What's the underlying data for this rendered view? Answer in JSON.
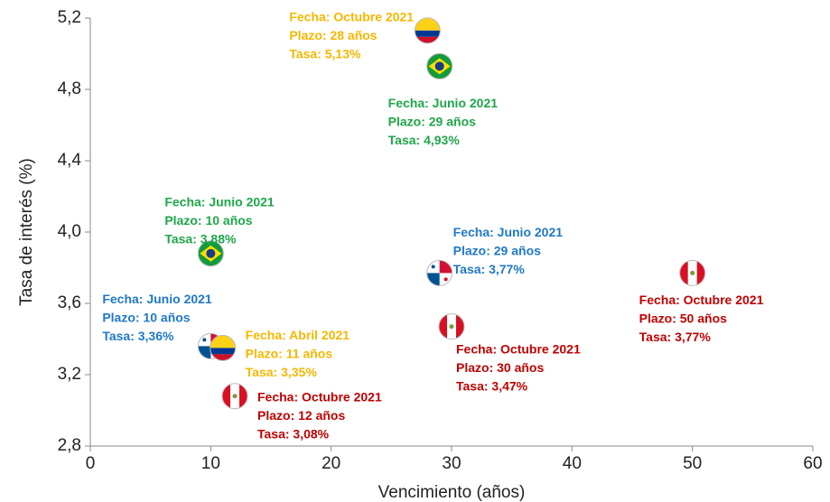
{
  "chart_data": {
    "type": "scatter",
    "x_label": "Vencimiento (años)",
    "y_label": "Tasa de interés (%)",
    "xlim": [
      0,
      60
    ],
    "xticks": [
      0,
      10,
      20,
      30,
      40,
      50,
      60
    ],
    "ylim": [
      2.8,
      5.2
    ],
    "yticks": [
      {
        "value": 2.8,
        "label": "2,8"
      },
      {
        "value": 3.2,
        "label": "3,2"
      },
      {
        "value": 3.6,
        "label": "3,6"
      },
      {
        "value": 4.0,
        "label": "4,0"
      },
      {
        "value": 4.4,
        "label": "4,4"
      },
      {
        "value": 4.8,
        "label": "4,8"
      },
      {
        "value": 5.2,
        "label": "5,2"
      }
    ],
    "points": [
      {
        "x": 28,
        "y": 5.13,
        "color": "#f5b700",
        "marker": "co",
        "labels": [
          "Fecha: Octubre 2021",
          "Plazo: 28 años",
          "Tasa: 5,13%"
        ]
      },
      {
        "x": 29,
        "y": 4.93,
        "color": "#1fa64a",
        "marker": "br",
        "labels": [
          "Fecha: Junio 2021",
          "Plazo: 29 años",
          "Tasa: 4,93%"
        ]
      },
      {
        "x": 10,
        "y": 3.88,
        "color": "#1fa64a",
        "marker": "br",
        "labels": [
          "Fecha: Junio 2021",
          "Plazo: 10 años",
          "Tasa: 3,88%"
        ]
      },
      {
        "x": 29,
        "y": 3.77,
        "color": "#1f78c8",
        "marker": "pa",
        "labels": [
          "Fecha: Junio 2021",
          "Plazo: 29 años",
          "Tasa: 3,77%"
        ]
      },
      {
        "x": 50,
        "y": 3.77,
        "color": "#c00000",
        "marker": "pe",
        "labels": [
          "Fecha: Octubre 2021",
          "Plazo: 50 años",
          "Tasa: 3,77%"
        ]
      },
      {
        "x": 10,
        "y": 3.36,
        "color": "#1f78c8",
        "marker": "pa",
        "labels": [
          "Fecha: Junio 2021",
          "Plazo: 10 años",
          "Tasa: 3,36%"
        ]
      },
      {
        "x": 11,
        "y": 3.35,
        "color": "#f5b700",
        "marker": "co",
        "labels": [
          "Fecha: Abril 2021",
          "Plazo: 11 años",
          "Tasa: 3,35%"
        ]
      },
      {
        "x": 30,
        "y": 3.47,
        "color": "#c00000",
        "marker": "pe",
        "labels": [
          "Fecha: Octubre 2021",
          "Plazo: 30 años",
          "Tasa: 3,47%"
        ]
      },
      {
        "x": 12,
        "y": 3.08,
        "color": "#c00000",
        "marker": "pe",
        "labels": [
          "Fecha: Octubre 2021",
          "Plazo: 12 años",
          "Tasa: 3,08%"
        ]
      }
    ]
  }
}
